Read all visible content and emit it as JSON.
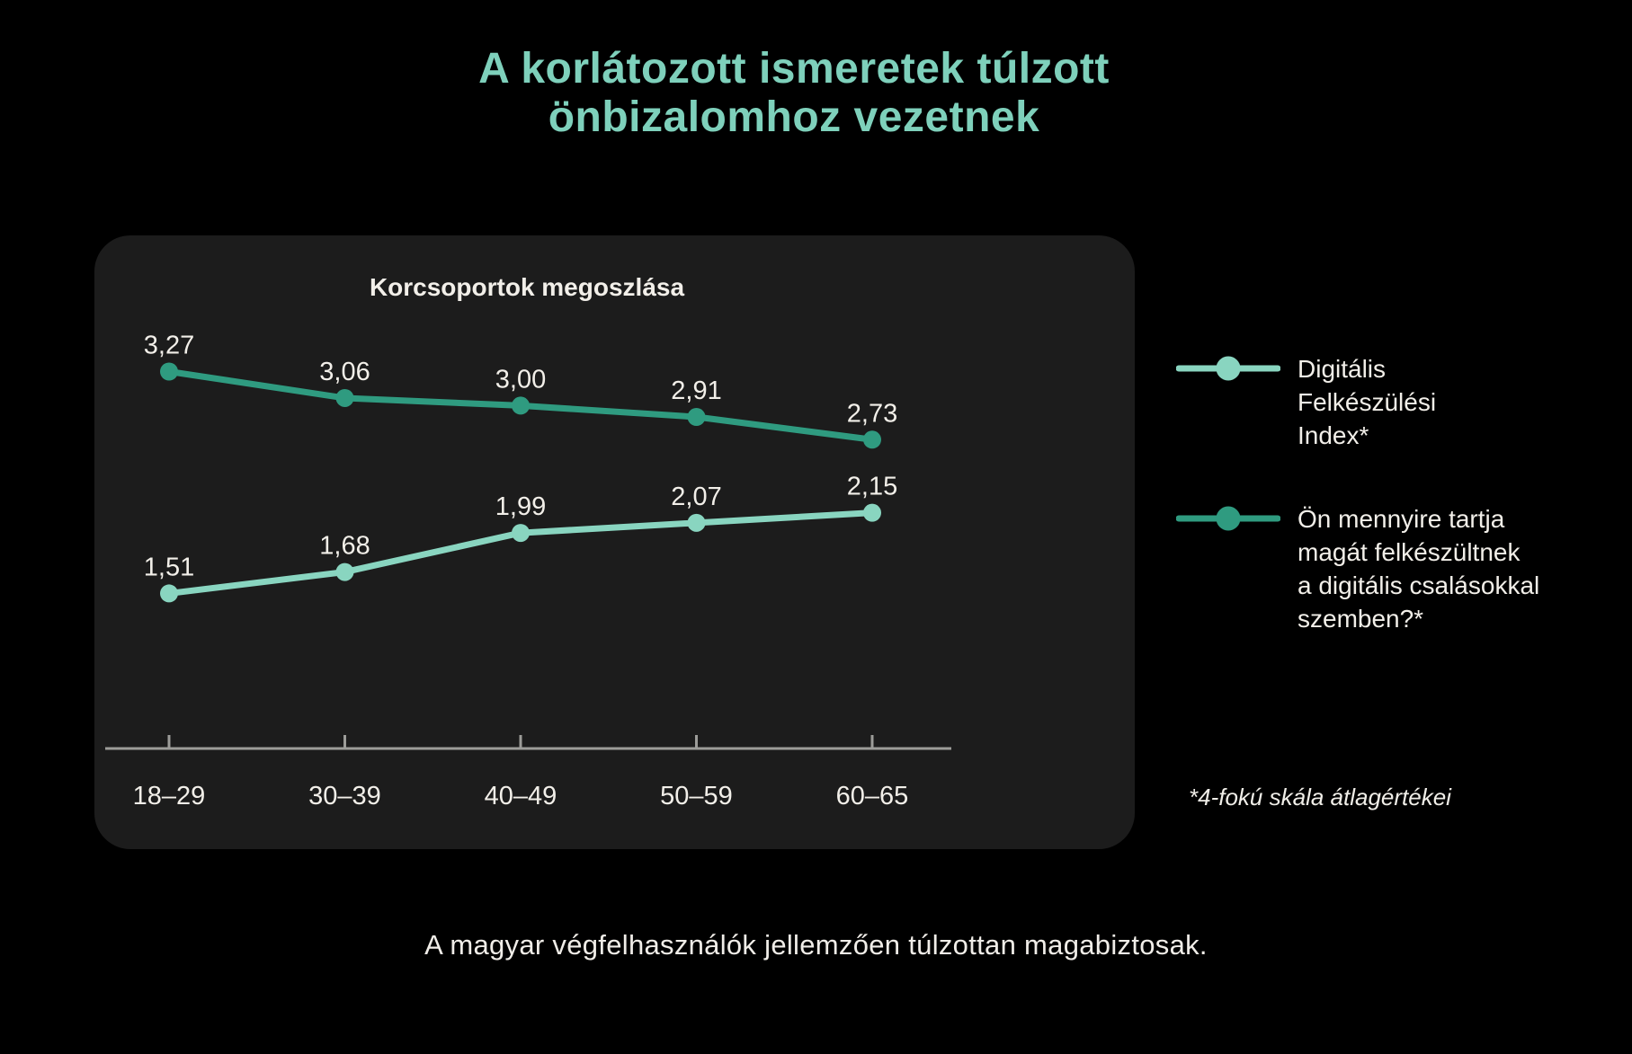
{
  "page": {
    "title": "A korlátozott ismeretek túlzott\nönbizalomhoz vezetnek",
    "caption": "A magyar végfelhasználók jellemzően túlzottan magabiztosak.",
    "footnote": "*4-fokú skála átlagértékei"
  },
  "colors": {
    "background": "#000000",
    "card": "#1c1c1c",
    "title_mint": "#7ed0bb",
    "series_dark_teal": "#2f9b80",
    "series_light_mint": "#89d5c0",
    "text_offwhite": "#f2efe9",
    "axis_gray": "#9c9c99"
  },
  "chart_data": {
    "type": "line",
    "title": "Korcsoportok megoszlása",
    "categories": [
      "18–29",
      "30–39",
      "40–49",
      "50–59",
      "60–65"
    ],
    "series": [
      {
        "name": "Ön mennyire tartja magát felkészültnek a digitális csalásokkal szemben?*",
        "color": "#2f9b80",
        "values": [
          3.27,
          3.06,
          3.0,
          2.91,
          2.73
        ],
        "labels": [
          "3,27",
          "3,06",
          "3,00",
          "2,91",
          "2,73"
        ]
      },
      {
        "name": "Digitális Felkészülési Index*",
        "color": "#89d5c0",
        "values": [
          1.51,
          1.68,
          1.99,
          2.07,
          2.15
        ],
        "labels": [
          "1,51",
          "1,68",
          "1,99",
          "2,07",
          "2,15"
        ]
      }
    ],
    "legend": [
      {
        "label": "Digitális\nFelkészülési\nIndex*",
        "color": "#89d5c0"
      },
      {
        "label": "Ön mennyire tartja\nmagát felkészültnek\na digitális csalásokkal\nszemben?*",
        "color": "#2f9b80"
      }
    ],
    "legend_position": "right",
    "grid": false,
    "xlabel": "",
    "ylabel": "",
    "ylim": [
      0,
      4
    ],
    "scale_note": "values are averages on a 4-point scale"
  }
}
